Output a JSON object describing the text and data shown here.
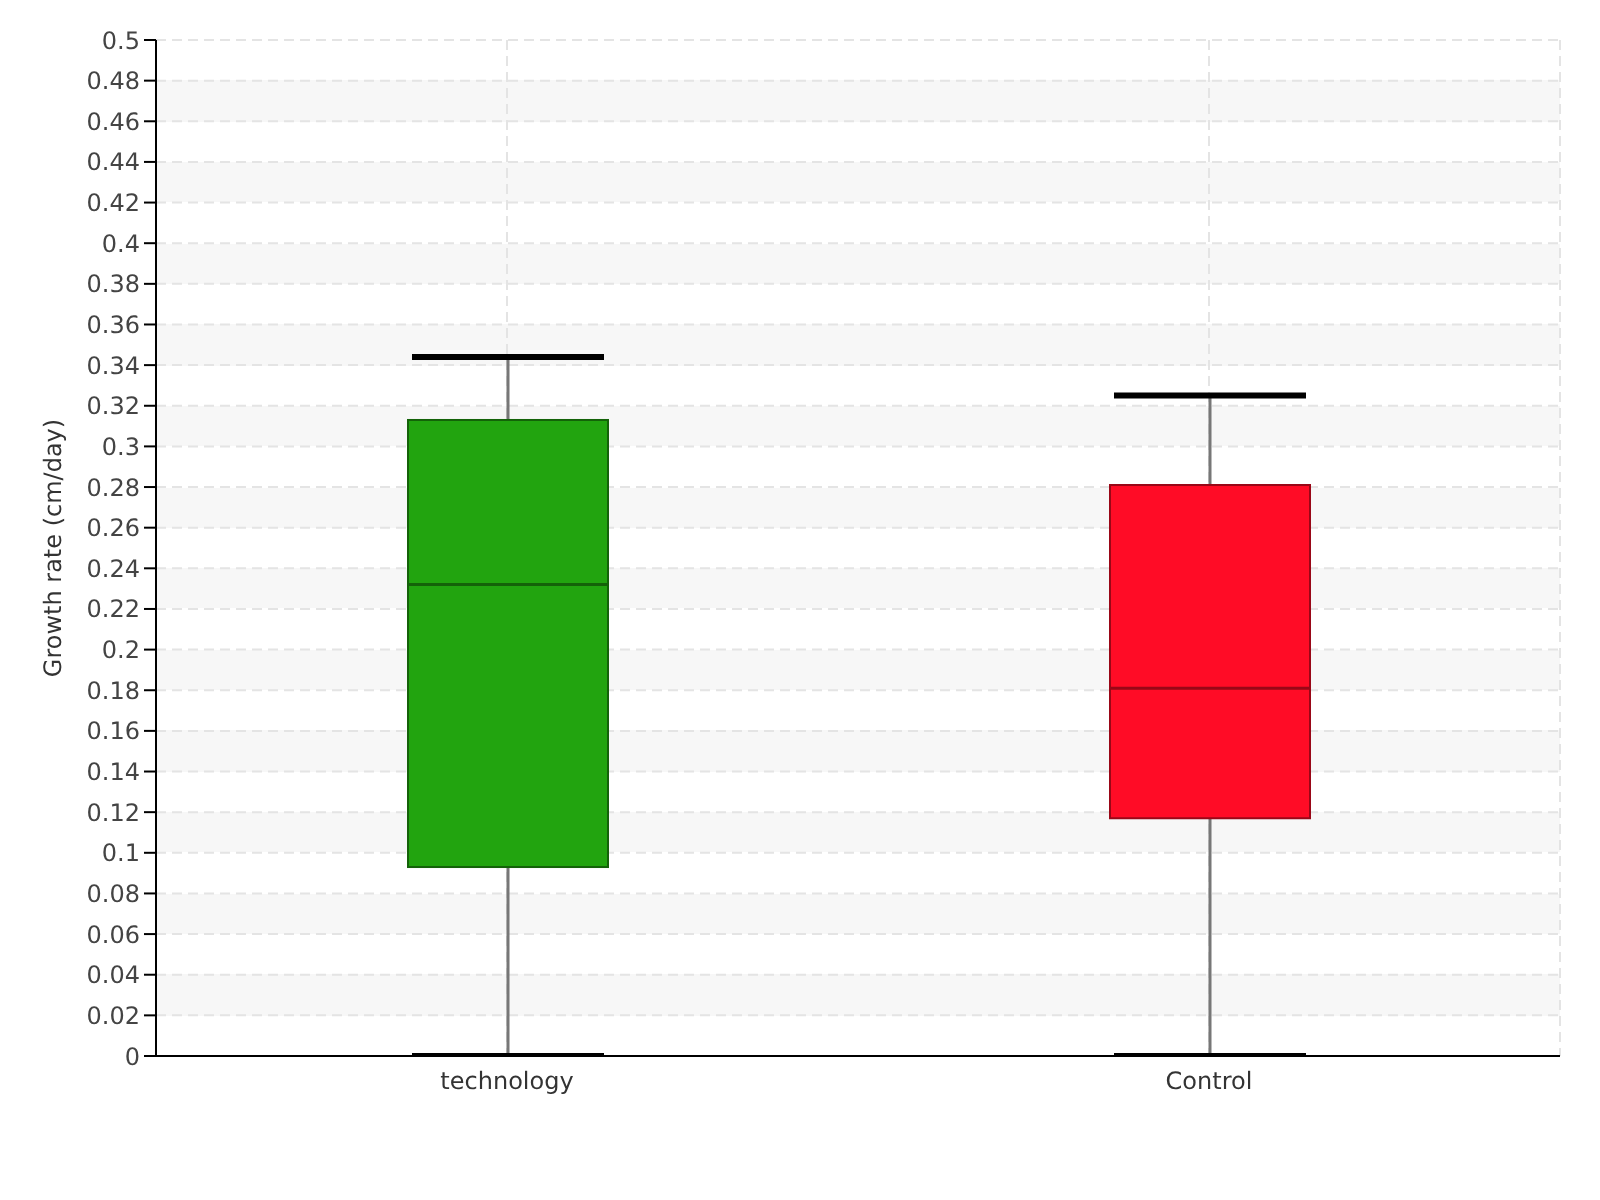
{
  "chart_data": {
    "type": "box",
    "ylabel": "Growth rate (cm/day)",
    "categories": [
      "technology",
      "Control"
    ],
    "colors": [
      "#22a40f",
      "#ff0c26"
    ],
    "boxes": [
      {
        "low": 0,
        "q1": 0.093,
        "median": 0.232,
        "q3": 0.313,
        "high": 0.344
      },
      {
        "low": 0,
        "q1": 0.117,
        "median": 0.181,
        "q3": 0.281,
        "high": 0.325
      }
    ],
    "ylim": [
      0,
      0.5
    ],
    "yticks": [
      0,
      0.02,
      0.04,
      0.06,
      0.08,
      0.1,
      0.12,
      0.14,
      0.16,
      0.18,
      0.2,
      0.22,
      0.24,
      0.26,
      0.28,
      0.3,
      0.32,
      0.34,
      0.36,
      0.38,
      0.4,
      0.42,
      0.44,
      0.46,
      0.48,
      0.5
    ],
    "grid": true
  }
}
